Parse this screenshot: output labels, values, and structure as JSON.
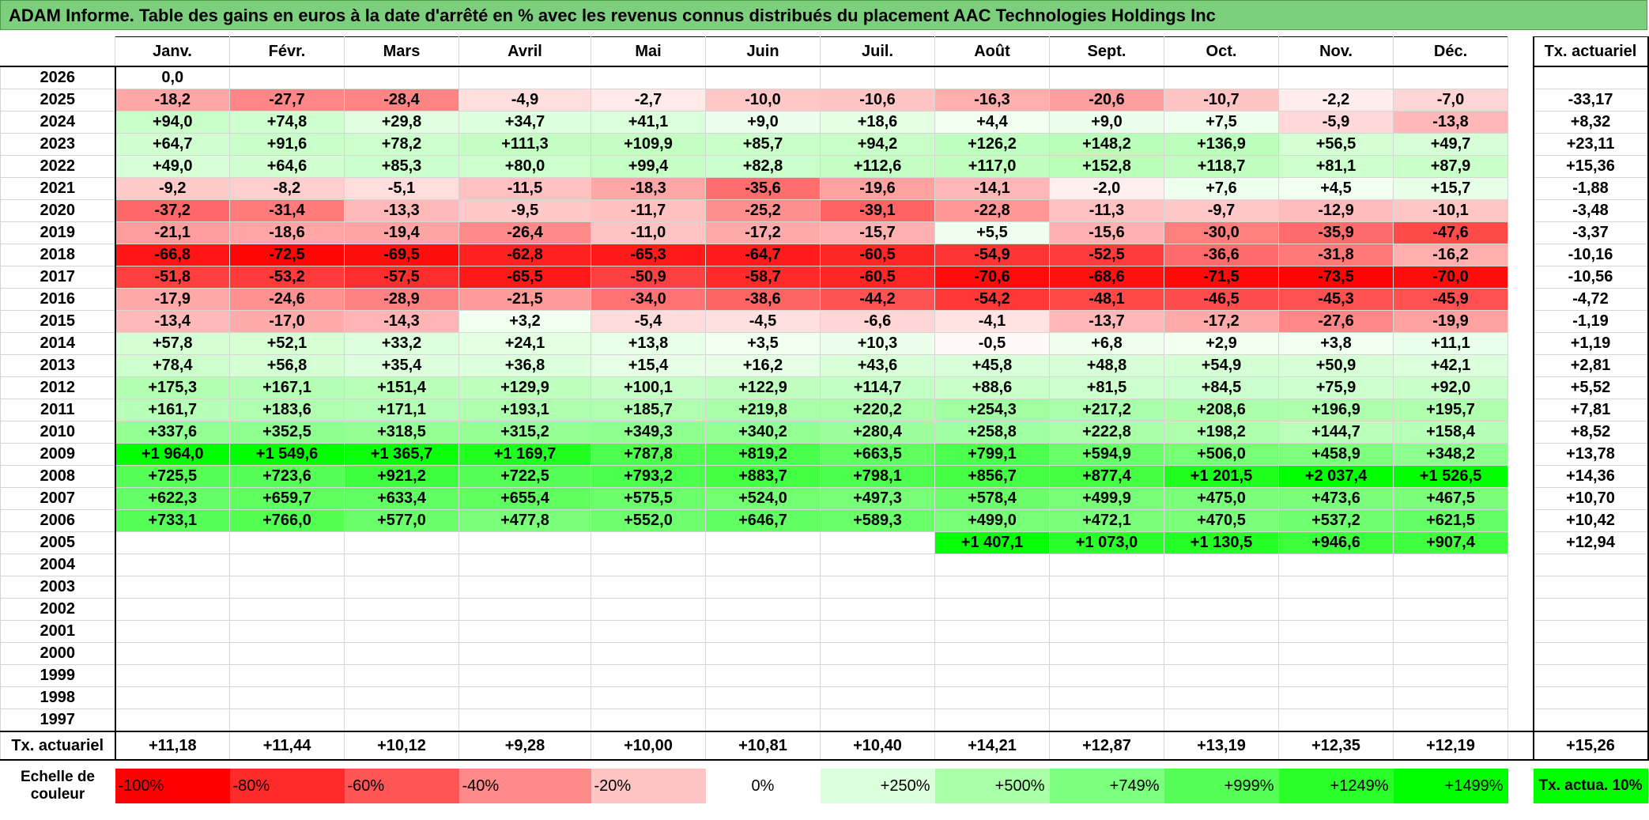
{
  "title": "ADAM Informe. Table des gains en euros à la date d'arrêté en % avec les revenus connus distribués du placement AAC Technologies Holdings Inc",
  "months": [
    "Janv.",
    "Févr.",
    "Mars",
    "Avril",
    "Mai",
    "Juin",
    "Juil.",
    "Août",
    "Sept.",
    "Oct.",
    "Nov.",
    "Déc."
  ],
  "tx_header": "Tx. actuariel",
  "rows": [
    {
      "year": "2026",
      "values": [
        "0,0",
        "",
        "",
        "",
        "",
        "",
        "",
        "",
        "",
        "",
        "",
        ""
      ],
      "tx": ""
    },
    {
      "year": "2025",
      "values": [
        "-18,2",
        "-27,7",
        "-28,4",
        "-4,9",
        "-2,7",
        "-10,0",
        "-10,6",
        "-16,3",
        "-20,6",
        "-10,7",
        "-2,2",
        "-7,0"
      ],
      "tx": "-33,17"
    },
    {
      "year": "2024",
      "values": [
        "+94,0",
        "+74,8",
        "+29,8",
        "+34,7",
        "+41,1",
        "+9,0",
        "+18,6",
        "+4,4",
        "+9,0",
        "+7,5",
        "-5,9",
        "-13,8"
      ],
      "tx": "+8,32"
    },
    {
      "year": "2023",
      "values": [
        "+64,7",
        "+91,6",
        "+78,2",
        "+111,3",
        "+109,9",
        "+85,7",
        "+94,2",
        "+126,2",
        "+148,2",
        "+136,9",
        "+56,5",
        "+49,7"
      ],
      "tx": "+23,11"
    },
    {
      "year": "2022",
      "values": [
        "+49,0",
        "+64,6",
        "+85,3",
        "+80,0",
        "+99,4",
        "+82,8",
        "+112,6",
        "+117,0",
        "+152,8",
        "+118,7",
        "+81,1",
        "+87,9"
      ],
      "tx": "+15,36"
    },
    {
      "year": "2021",
      "values": [
        "-9,2",
        "-8,2",
        "-5,1",
        "-11,5",
        "-18,3",
        "-35,6",
        "-19,6",
        "-14,1",
        "-2,0",
        "+7,6",
        "+4,5",
        "+15,7"
      ],
      "tx": "-1,88"
    },
    {
      "year": "2020",
      "values": [
        "-37,2",
        "-31,4",
        "-13,3",
        "-9,5",
        "-11,7",
        "-25,2",
        "-39,1",
        "-22,8",
        "-11,3",
        "-9,7",
        "-12,9",
        "-10,1"
      ],
      "tx": "-3,48"
    },
    {
      "year": "2019",
      "values": [
        "-21,1",
        "-18,6",
        "-19,4",
        "-26,4",
        "-11,0",
        "-17,2",
        "-15,7",
        "+5,5",
        "-15,6",
        "-30,0",
        "-35,9",
        "-47,6"
      ],
      "tx": "-3,37"
    },
    {
      "year": "2018",
      "values": [
        "-66,8",
        "-72,5",
        "-69,5",
        "-62,8",
        "-65,3",
        "-64,7",
        "-60,5",
        "-54,9",
        "-52,5",
        "-36,6",
        "-31,8",
        "-16,2"
      ],
      "tx": "-10,16"
    },
    {
      "year": "2017",
      "values": [
        "-51,8",
        "-53,2",
        "-57,5",
        "-65,5",
        "-50,9",
        "-58,7",
        "-60,5",
        "-70,6",
        "-68,6",
        "-71,5",
        "-73,5",
        "-70,0"
      ],
      "tx": "-10,56"
    },
    {
      "year": "2016",
      "values": [
        "-17,9",
        "-24,6",
        "-28,9",
        "-21,5",
        "-34,0",
        "-38,6",
        "-44,2",
        "-54,2",
        "-48,1",
        "-46,5",
        "-45,3",
        "-45,9"
      ],
      "tx": "-4,72"
    },
    {
      "year": "2015",
      "values": [
        "-13,4",
        "-17,0",
        "-14,3",
        "+3,2",
        "-5,4",
        "-4,5",
        "-6,6",
        "-4,1",
        "-13,7",
        "-17,2",
        "-27,6",
        "-19,9"
      ],
      "tx": "-1,19"
    },
    {
      "year": "2014",
      "values": [
        "+57,8",
        "+52,1",
        "+33,2",
        "+24,1",
        "+13,8",
        "+3,5",
        "+10,3",
        "-0,5",
        "+6,8",
        "+2,9",
        "+3,8",
        "+11,1"
      ],
      "tx": "+1,19"
    },
    {
      "year": "2013",
      "values": [
        "+78,4",
        "+56,8",
        "+35,4",
        "+36,8",
        "+15,4",
        "+16,2",
        "+43,6",
        "+45,8",
        "+48,8",
        "+54,9",
        "+50,9",
        "+42,1"
      ],
      "tx": "+2,81"
    },
    {
      "year": "2012",
      "values": [
        "+175,3",
        "+167,1",
        "+151,4",
        "+129,9",
        "+100,1",
        "+122,9",
        "+114,7",
        "+88,6",
        "+81,5",
        "+84,5",
        "+75,9",
        "+92,0"
      ],
      "tx": "+5,52"
    },
    {
      "year": "2011",
      "values": [
        "+161,7",
        "+183,6",
        "+171,1",
        "+193,1",
        "+185,7",
        "+219,8",
        "+220,2",
        "+254,3",
        "+217,2",
        "+208,6",
        "+196,9",
        "+195,7"
      ],
      "tx": "+7,81"
    },
    {
      "year": "2010",
      "values": [
        "+337,6",
        "+352,5",
        "+318,5",
        "+315,2",
        "+349,3",
        "+340,2",
        "+280,4",
        "+258,8",
        "+222,8",
        "+198,2",
        "+144,7",
        "+158,4"
      ],
      "tx": "+8,52"
    },
    {
      "year": "2009",
      "values": [
        "+1 964,0",
        "+1 549,6",
        "+1 365,7",
        "+1 169,7",
        "+787,8",
        "+819,2",
        "+663,5",
        "+799,1",
        "+594,9",
        "+506,0",
        "+458,9",
        "+348,2"
      ],
      "tx": "+13,78"
    },
    {
      "year": "2008",
      "values": [
        "+725,5",
        "+723,6",
        "+921,2",
        "+722,5",
        "+793,2",
        "+883,7",
        "+798,1",
        "+856,7",
        "+877,4",
        "+1 201,5",
        "+2 037,4",
        "+1 526,5"
      ],
      "tx": "+14,36"
    },
    {
      "year": "2007",
      "values": [
        "+622,3",
        "+659,7",
        "+633,4",
        "+655,4",
        "+575,5",
        "+524,0",
        "+497,3",
        "+578,4",
        "+499,9",
        "+475,0",
        "+473,6",
        "+467,5"
      ],
      "tx": "+10,70"
    },
    {
      "year": "2006",
      "values": [
        "+733,1",
        "+766,0",
        "+577,0",
        "+477,8",
        "+552,0",
        "+646,7",
        "+589,3",
        "+499,0",
        "+472,1",
        "+470,5",
        "+537,2",
        "+621,5"
      ],
      "tx": "+10,42"
    },
    {
      "year": "2005",
      "values": [
        "",
        "",
        "",
        "",
        "",
        "",
        "",
        "+1 407,1",
        "+1 073,0",
        "+1 130,5",
        "+946,6",
        "+907,4"
      ],
      "tx": "+12,94"
    },
    {
      "year": "2004",
      "values": [
        "",
        "",
        "",
        "",
        "",
        "",
        "",
        "",
        "",
        "",
        "",
        ""
      ],
      "tx": ""
    },
    {
      "year": "2003",
      "values": [
        "",
        "",
        "",
        "",
        "",
        "",
        "",
        "",
        "",
        "",
        "",
        ""
      ],
      "tx": ""
    },
    {
      "year": "2002",
      "values": [
        "",
        "",
        "",
        "",
        "",
        "",
        "",
        "",
        "",
        "",
        "",
        ""
      ],
      "tx": ""
    },
    {
      "year": "2001",
      "values": [
        "",
        "",
        "",
        "",
        "",
        "",
        "",
        "",
        "",
        "",
        "",
        ""
      ],
      "tx": ""
    },
    {
      "year": "2000",
      "values": [
        "",
        "",
        "",
        "",
        "",
        "",
        "",
        "",
        "",
        "",
        "",
        ""
      ],
      "tx": ""
    },
    {
      "year": "1999",
      "values": [
        "",
        "",
        "",
        "",
        "",
        "",
        "",
        "",
        "",
        "",
        "",
        ""
      ],
      "tx": ""
    },
    {
      "year": "1998",
      "values": [
        "",
        "",
        "",
        "",
        "",
        "",
        "",
        "",
        "",
        "",
        "",
        ""
      ],
      "tx": ""
    },
    {
      "year": "1997",
      "values": [
        "",
        "",
        "",
        "",
        "",
        "",
        "",
        "",
        "",
        "",
        "",
        ""
      ],
      "tx": ""
    }
  ],
  "summary": {
    "label": "Tx. actuariel",
    "values": [
      "+11,18",
      "+11,44",
      "+10,12",
      "+9,28",
      "+10,00",
      "+10,81",
      "+10,40",
      "+14,21",
      "+12,87",
      "+13,19",
      "+12,35",
      "+12,19"
    ],
    "total": "+15,26"
  },
  "legend": {
    "label": "Echelle de couleur",
    "scale": [
      {
        "text": "-100%",
        "color": "#ff0000"
      },
      {
        "text": "-80%",
        "color": "#ff2a2a"
      },
      {
        "text": "-60%",
        "color": "#ff5555"
      },
      {
        "text": "-40%",
        "color": "#ff8a8a"
      },
      {
        "text": "-20%",
        "color": "#ffc4c4"
      },
      {
        "text": "0%",
        "color": "#ffffff"
      },
      {
        "text": "+250%",
        "color": "#dcffdc"
      },
      {
        "text": "+500%",
        "color": "#a8ffa8"
      },
      {
        "text": "+749%",
        "color": "#7cff7c"
      },
      {
        "text": "+999%",
        "color": "#55ff55"
      },
      {
        "text": "+1249%",
        "color": "#2aff2a"
      },
      {
        "text": "+1499%",
        "color": "#00ff00"
      }
    ],
    "tx_label": "Tx. actua. 10%",
    "tx_color": "#00ff00"
  },
  "colors": {
    "title_bg": "#7ccf7c",
    "negative_max": "#ff0000",
    "positive_max": "#00ff00"
  }
}
